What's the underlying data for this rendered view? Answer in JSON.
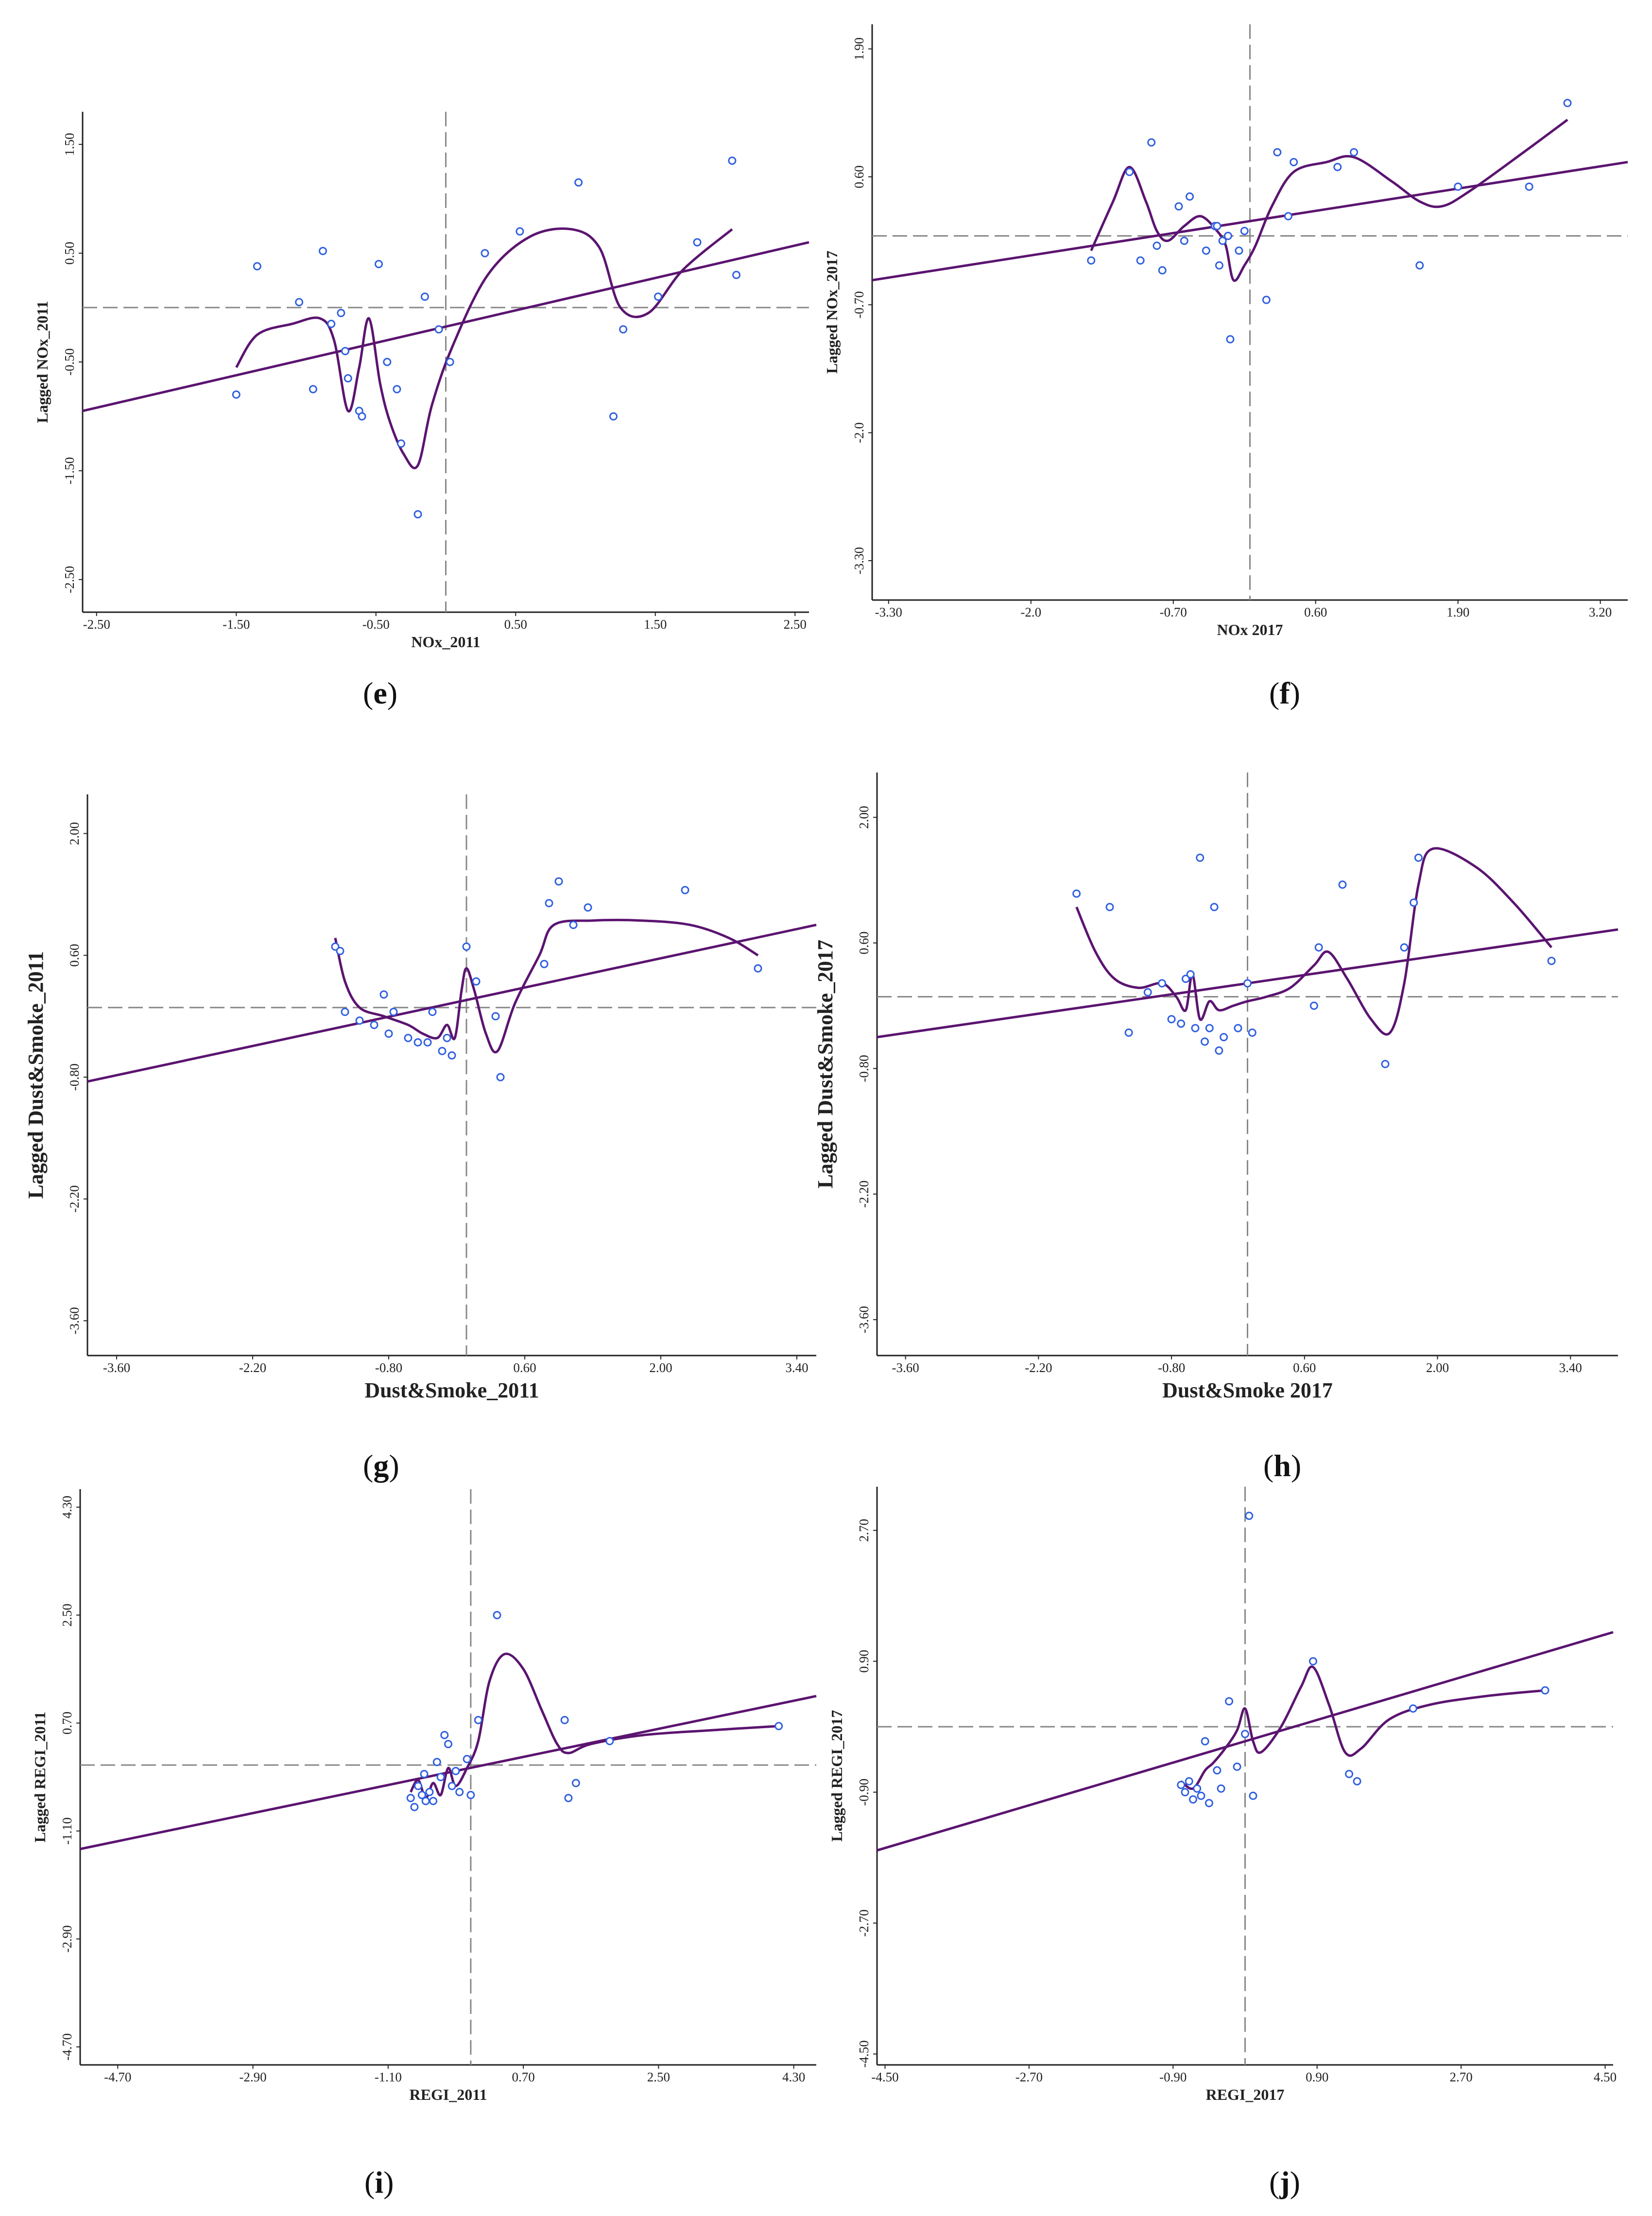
{
  "colors": {
    "point": "#2f5fe0",
    "curve": "#5b1470",
    "fit_line": "#5b1470",
    "axes": "#222222",
    "crosshair": "#888888"
  },
  "chart_data": [
    {
      "id": "e",
      "caption_letter": "e",
      "type": "scatter",
      "xlabel": "NOx_2011",
      "ylabel": "Lagged NOx_2011",
      "xticks": [
        "-2.50",
        "-1.50",
        "-0.50",
        "0.50",
        "1.50",
        "2.50"
      ],
      "yticks": [
        "-2.50",
        "-1.50",
        "-0.50",
        "0.50",
        "1.50"
      ],
      "xlim": [
        -2.6,
        2.6
      ],
      "ylim": [
        -2.8,
        1.8
      ],
      "crosshair": {
        "x": 0,
        "y": 0
      },
      "fit_line": {
        "x": [
          -2.6,
          2.6
        ],
        "y": [
          -0.95,
          0.6
        ]
      },
      "points": [
        [
          -1.5,
          -0.8
        ],
        [
          -1.35,
          0.38
        ],
        [
          -1.05,
          0.05
        ],
        [
          -0.95,
          -0.75
        ],
        [
          -0.88,
          0.52
        ],
        [
          -0.82,
          -0.15
        ],
        [
          -0.75,
          -0.05
        ],
        [
          -0.72,
          -0.4
        ],
        [
          -0.7,
          -0.65
        ],
        [
          -0.62,
          -0.95
        ],
        [
          -0.6,
          -1.0
        ],
        [
          -0.48,
          0.4
        ],
        [
          -0.42,
          -0.5
        ],
        [
          -0.35,
          -0.75
        ],
        [
          -0.32,
          -1.25
        ],
        [
          -0.2,
          -1.9
        ],
        [
          -0.15,
          0.1
        ],
        [
          -0.05,
          -0.2
        ],
        [
          0.03,
          -0.5
        ],
        [
          0.28,
          0.5
        ],
        [
          0.53,
          0.7
        ],
        [
          0.95,
          1.15
        ],
        [
          1.2,
          -1.0
        ],
        [
          1.27,
          -0.2
        ],
        [
          1.52,
          0.1
        ],
        [
          1.8,
          0.6
        ],
        [
          2.05,
          1.35
        ],
        [
          2.08,
          0.3
        ]
      ],
      "smooth_curve": [
        [
          -1.5,
          -0.55
        ],
        [
          -1.35,
          -0.25
        ],
        [
          -1.1,
          -0.15
        ],
        [
          -0.9,
          -0.1
        ],
        [
          -0.8,
          -0.3
        ],
        [
          -0.7,
          -0.95
        ],
        [
          -0.62,
          -0.55
        ],
        [
          -0.55,
          -0.1
        ],
        [
          -0.47,
          -0.7
        ],
        [
          -0.4,
          -1.05
        ],
        [
          -0.3,
          -1.35
        ],
        [
          -0.2,
          -1.45
        ],
        [
          -0.1,
          -0.9
        ],
        [
          0.05,
          -0.35
        ],
        [
          0.3,
          0.3
        ],
        [
          0.6,
          0.65
        ],
        [
          0.9,
          0.72
        ],
        [
          1.1,
          0.55
        ],
        [
          1.25,
          0.0
        ],
        [
          1.45,
          -0.05
        ],
        [
          1.7,
          0.35
        ],
        [
          2.05,
          0.72
        ]
      ]
    },
    {
      "id": "f",
      "caption_letter": "f",
      "type": "scatter",
      "xlabel": "NOx 2017",
      "ylabel": "Lagged NOx_2017",
      "xticks": [
        "-3.30",
        "-2.0",
        "-0.70",
        "0.60",
        "1.90",
        "3.20"
      ],
      "yticks": [
        "-3.30",
        "-2.0",
        "-0.70",
        "0.60",
        "1.90"
      ],
      "xlim": [
        -3.45,
        3.45
      ],
      "ylim": [
        -3.7,
        2.15
      ],
      "crosshair": {
        "x": 0,
        "y": 0
      },
      "fit_line": {
        "x": [
          -3.45,
          3.45
        ],
        "y": [
          -0.45,
          0.75
        ]
      },
      "points": [
        [
          -1.45,
          -0.25
        ],
        [
          -1.1,
          0.65
        ],
        [
          -1.0,
          -0.25
        ],
        [
          -0.9,
          0.95
        ],
        [
          -0.85,
          -0.1
        ],
        [
          -0.8,
          -0.35
        ],
        [
          -0.65,
          0.3
        ],
        [
          -0.6,
          -0.05
        ],
        [
          -0.55,
          0.4
        ],
        [
          -0.4,
          -0.15
        ],
        [
          -0.32,
          0.1
        ],
        [
          -0.3,
          0.1
        ],
        [
          -0.28,
          -0.3
        ],
        [
          -0.25,
          -0.05
        ],
        [
          -0.2,
          0.0
        ],
        [
          -0.18,
          -1.05
        ],
        [
          -0.1,
          -0.15
        ],
        [
          -0.05,
          0.05
        ],
        [
          0.15,
          -0.65
        ],
        [
          0.25,
          0.85
        ],
        [
          0.35,
          0.2
        ],
        [
          0.4,
          0.75
        ],
        [
          0.8,
          0.7
        ],
        [
          0.95,
          0.85
        ],
        [
          1.55,
          -0.3
        ],
        [
          1.9,
          0.5
        ],
        [
          2.55,
          0.5
        ],
        [
          2.9,
          1.35
        ]
      ],
      "smooth_curve": [
        [
          -1.45,
          -0.15
        ],
        [
          -1.25,
          0.35
        ],
        [
          -1.1,
          0.7
        ],
        [
          -0.95,
          0.35
        ],
        [
          -0.85,
          0.05
        ],
        [
          -0.75,
          -0.05
        ],
        [
          -0.6,
          0.1
        ],
        [
          -0.45,
          0.2
        ],
        [
          -0.3,
          0.05
        ],
        [
          -0.22,
          -0.1
        ],
        [
          -0.15,
          -0.45
        ],
        [
          -0.05,
          -0.3
        ],
        [
          0.05,
          -0.1
        ],
        [
          0.2,
          0.3
        ],
        [
          0.4,
          0.65
        ],
        [
          0.7,
          0.75
        ],
        [
          0.95,
          0.8
        ],
        [
          1.3,
          0.55
        ],
        [
          1.55,
          0.35
        ],
        [
          1.75,
          0.3
        ],
        [
          2.0,
          0.45
        ],
        [
          2.5,
          0.85
        ],
        [
          2.9,
          1.18
        ]
      ]
    },
    {
      "id": "g",
      "caption_letter": "g",
      "type": "scatter",
      "xlabel": "Dust&Smoke_2011",
      "ylabel": "Lagged Dust&Smoke_2011",
      "xticks": [
        "-3.60",
        "-2.20",
        "-0.80",
        "0.60",
        "2.00",
        "3.40"
      ],
      "yticks": [
        "-3.60",
        "-2.20",
        "-0.80",
        "0.60",
        "2.00"
      ],
      "xlim": [
        -3.9,
        3.6
      ],
      "ylim": [
        -4.0,
        2.45
      ],
      "crosshair": {
        "x": 0,
        "y": 0
      },
      "fit_line": {
        "x": [
          -3.9,
          3.6
        ],
        "y": [
          -0.85,
          0.95
        ]
      },
      "points": [
        [
          -1.35,
          0.7
        ],
        [
          -1.3,
          0.65
        ],
        [
          -1.25,
          -0.05
        ],
        [
          -1.1,
          -0.15
        ],
        [
          -0.95,
          -0.2
        ],
        [
          -0.85,
          0.15
        ],
        [
          -0.8,
          -0.3
        ],
        [
          -0.75,
          -0.05
        ],
        [
          -0.6,
          -0.35
        ],
        [
          -0.5,
          -0.4
        ],
        [
          -0.4,
          -0.4
        ],
        [
          -0.35,
          -0.05
        ],
        [
          -0.25,
          -0.5
        ],
        [
          -0.2,
          -0.35
        ],
        [
          -0.15,
          -0.55
        ],
        [
          0.0,
          0.7
        ],
        [
          0.1,
          0.3
        ],
        [
          0.3,
          -0.1
        ],
        [
          0.35,
          -0.8
        ],
        [
          0.8,
          0.5
        ],
        [
          0.85,
          1.2
        ],
        [
          0.95,
          1.45
        ],
        [
          1.1,
          0.95
        ],
        [
          1.25,
          1.15
        ],
        [
          2.25,
          1.35
        ],
        [
          3.0,
          0.45
        ]
      ],
      "smooth_curve": [
        [
          -1.35,
          0.8
        ],
        [
          -1.25,
          0.3
        ],
        [
          -1.1,
          0.0
        ],
        [
          -0.85,
          -0.1
        ],
        [
          -0.6,
          -0.2
        ],
        [
          -0.45,
          -0.3
        ],
        [
          -0.3,
          -0.35
        ],
        [
          -0.2,
          -0.2
        ],
        [
          -0.12,
          -0.35
        ],
        [
          -0.05,
          0.2
        ],
        [
          0.0,
          0.45
        ],
        [
          0.08,
          0.2
        ],
        [
          0.2,
          -0.3
        ],
        [
          0.32,
          -0.5
        ],
        [
          0.5,
          0.05
        ],
        [
          0.75,
          0.6
        ],
        [
          0.9,
          0.95
        ],
        [
          1.3,
          1.0
        ],
        [
          1.8,
          1.0
        ],
        [
          2.3,
          0.95
        ],
        [
          2.7,
          0.8
        ],
        [
          3.0,
          0.6
        ]
      ]
    },
    {
      "id": "h",
      "caption_letter": "h",
      "type": "scatter",
      "xlabel": "Dust&Smoke 2017",
      "ylabel": "Lagged Dust&Smoke_2017",
      "xticks": [
        "-3.60",
        "-2.20",
        "-0.80",
        "0.60",
        "2.00",
        "3.40"
      ],
      "yticks": [
        "-3.60",
        "-2.20",
        "-0.80",
        "0.60",
        "2.00"
      ],
      "xlim": [
        -3.9,
        3.9
      ],
      "ylim": [
        -4.0,
        2.5
      ],
      "crosshair": {
        "x": 0,
        "y": 0
      },
      "fit_line": {
        "x": [
          -3.9,
          3.9
        ],
        "y": [
          -0.45,
          0.75
        ]
      },
      "points": [
        [
          -1.8,
          1.15
        ],
        [
          -1.45,
          1.0
        ],
        [
          -1.25,
          -0.4
        ],
        [
          -1.05,
          0.05
        ],
        [
          -0.9,
          0.15
        ],
        [
          -0.8,
          -0.25
        ],
        [
          -0.7,
          -0.3
        ],
        [
          -0.65,
          0.2
        ],
        [
          -0.6,
          0.25
        ],
        [
          -0.55,
          -0.35
        ],
        [
          -0.5,
          1.55
        ],
        [
          -0.45,
          -0.5
        ],
        [
          -0.4,
          -0.35
        ],
        [
          -0.35,
          1.0
        ],
        [
          -0.3,
          -0.6
        ],
        [
          -0.25,
          -0.45
        ],
        [
          -0.1,
          -0.35
        ],
        [
          0.0,
          0.15
        ],
        [
          0.05,
          -0.4
        ],
        [
          0.7,
          -0.1
        ],
        [
          0.75,
          0.55
        ],
        [
          1.0,
          1.25
        ],
        [
          1.45,
          -0.75
        ],
        [
          1.65,
          0.55
        ],
        [
          1.75,
          1.05
        ],
        [
          1.8,
          1.55
        ],
        [
          3.2,
          0.4
        ]
      ],
      "smooth_curve": [
        [
          -1.8,
          1.0
        ],
        [
          -1.6,
          0.5
        ],
        [
          -1.4,
          0.2
        ],
        [
          -1.15,
          0.1
        ],
        [
          -0.9,
          0.15
        ],
        [
          -0.75,
          0.0
        ],
        [
          -0.65,
          -0.15
        ],
        [
          -0.58,
          0.25
        ],
        [
          -0.5,
          -0.25
        ],
        [
          -0.4,
          -0.05
        ],
        [
          -0.3,
          -0.15
        ],
        [
          -0.15,
          -0.1
        ],
        [
          0.0,
          -0.05
        ],
        [
          0.2,
          0.0
        ],
        [
          0.45,
          0.1
        ],
        [
          0.7,
          0.35
        ],
        [
          0.85,
          0.5
        ],
        [
          1.05,
          0.2
        ],
        [
          1.3,
          -0.25
        ],
        [
          1.5,
          -0.4
        ],
        [
          1.65,
          0.15
        ],
        [
          1.8,
          1.25
        ],
        [
          1.95,
          1.65
        ],
        [
          2.4,
          1.45
        ],
        [
          2.8,
          1.05
        ],
        [
          3.2,
          0.55
        ]
      ]
    },
    {
      "id": "i",
      "caption_letter": "i",
      "type": "scatter",
      "xlabel": "REGI_2011",
      "ylabel": "Lagged REGI_2011",
      "xticks": [
        "-4.70",
        "-2.90",
        "-1.10",
        "0.70",
        "2.50",
        "4.30"
      ],
      "yticks": [
        "-4.70",
        "-2.90",
        "-1.10",
        "0.70",
        "2.50",
        "4.30"
      ],
      "xlim": [
        -5.2,
        4.6
      ],
      "ylim": [
        -5.0,
        4.6
      ],
      "crosshair": {
        "x": 0,
        "y": 0
      },
      "fit_line": {
        "x": [
          -5.2,
          4.6
        ],
        "y": [
          -1.4,
          1.15
        ]
      },
      "points": [
        [
          -0.8,
          -0.55
        ],
        [
          -0.75,
          -0.7
        ],
        [
          -0.7,
          -0.35
        ],
        [
          -0.65,
          -0.5
        ],
        [
          -0.62,
          -0.15
        ],
        [
          -0.6,
          -0.6
        ],
        [
          -0.55,
          -0.45
        ],
        [
          -0.5,
          -0.6
        ],
        [
          -0.45,
          0.05
        ],
        [
          -0.4,
          -0.2
        ],
        [
          -0.35,
          0.5
        ],
        [
          -0.3,
          0.35
        ],
        [
          -0.25,
          -0.35
        ],
        [
          -0.2,
          -0.1
        ],
        [
          -0.15,
          -0.45
        ],
        [
          -0.05,
          0.1
        ],
        [
          0.0,
          -0.5
        ],
        [
          0.1,
          0.75
        ],
        [
          0.35,
          2.5
        ],
        [
          1.25,
          0.75
        ],
        [
          1.3,
          -0.55
        ],
        [
          1.4,
          -0.3
        ],
        [
          1.85,
          0.4
        ],
        [
          4.1,
          0.65
        ]
      ],
      "smooth_curve": [
        [
          -0.8,
          -0.45
        ],
        [
          -0.7,
          -0.25
        ],
        [
          -0.6,
          -0.55
        ],
        [
          -0.5,
          -0.3
        ],
        [
          -0.4,
          -0.5
        ],
        [
          -0.3,
          -0.05
        ],
        [
          -0.2,
          -0.35
        ],
        [
          -0.05,
          -0.05
        ],
        [
          0.1,
          0.4
        ],
        [
          0.25,
          1.4
        ],
        [
          0.45,
          1.85
        ],
        [
          0.7,
          1.6
        ],
        [
          0.95,
          0.9
        ],
        [
          1.15,
          0.35
        ],
        [
          1.3,
          0.2
        ],
        [
          1.6,
          0.35
        ],
        [
          2.3,
          0.5
        ],
        [
          3.2,
          0.58
        ],
        [
          4.1,
          0.65
        ]
      ]
    },
    {
      "id": "j",
      "caption_letter": "j",
      "type": "scatter",
      "xlabel": "REGI_2017",
      "ylabel": "Lagged REGI_2017",
      "xticks": [
        "-4.50",
        "-2.70",
        "-0.90",
        "0.90",
        "2.70",
        "4.50"
      ],
      "yticks": [
        "-4.50",
        "-2.70",
        "-0.90",
        "0.90",
        "2.70"
      ],
      "xlim": [
        -4.6,
        4.6
      ],
      "ylim": [
        -4.65,
        3.3
      ],
      "crosshair": {
        "x": 0,
        "y": 0
      },
      "fit_line": {
        "x": [
          -4.6,
          4.6
        ],
        "y": [
          -1.7,
          1.3
        ]
      },
      "points": [
        [
          -0.8,
          -0.8
        ],
        [
          -0.75,
          -0.9
        ],
        [
          -0.7,
          -0.75
        ],
        [
          -0.65,
          -1.0
        ],
        [
          -0.6,
          -0.85
        ],
        [
          -0.55,
          -0.95
        ],
        [
          -0.5,
          -0.2
        ],
        [
          -0.45,
          -1.05
        ],
        [
          -0.35,
          -0.6
        ],
        [
          -0.3,
          -0.85
        ],
        [
          -0.2,
          0.35
        ],
        [
          -0.1,
          -0.55
        ],
        [
          0.0,
          -0.1
        ],
        [
          0.05,
          2.9
        ],
        [
          0.1,
          -0.95
        ],
        [
          0.85,
          0.9
        ],
        [
          1.3,
          -0.65
        ],
        [
          1.4,
          -0.75
        ],
        [
          2.1,
          0.25
        ],
        [
          3.75,
          0.5
        ]
      ],
      "smooth_curve": [
        [
          -0.8,
          -0.75
        ],
        [
          -0.65,
          -0.85
        ],
        [
          -0.5,
          -0.6
        ],
        [
          -0.4,
          -0.5
        ],
        [
          -0.25,
          -0.3
        ],
        [
          -0.1,
          -0.05
        ],
        [
          0.0,
          0.25
        ],
        [
          0.1,
          -0.2
        ],
        [
          0.2,
          -0.35
        ],
        [
          0.45,
          0.0
        ],
        [
          0.7,
          0.55
        ],
        [
          0.85,
          0.82
        ],
        [
          1.05,
          0.3
        ],
        [
          1.25,
          -0.35
        ],
        [
          1.45,
          -0.3
        ],
        [
          1.8,
          0.1
        ],
        [
          2.3,
          0.3
        ],
        [
          3.0,
          0.42
        ],
        [
          3.75,
          0.5
        ]
      ]
    }
  ]
}
